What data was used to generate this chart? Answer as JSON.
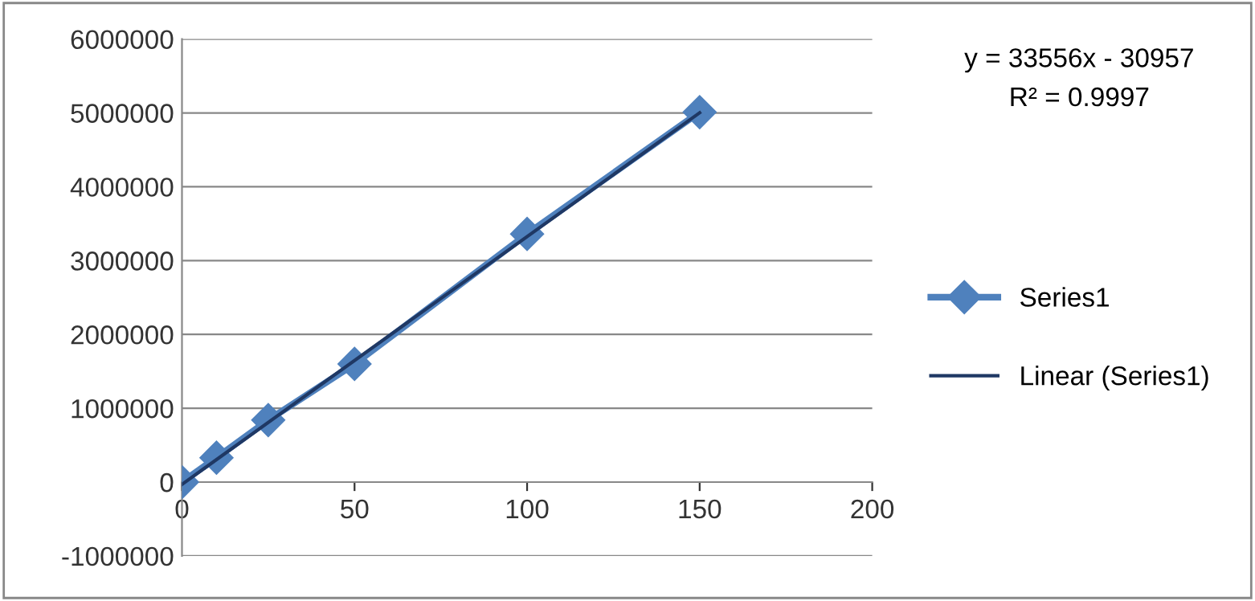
{
  "chart_data": {
    "type": "line",
    "x": [
      0,
      10,
      25,
      50,
      100,
      150
    ],
    "series": [
      {
        "name": "Series1",
        "color": "#4f81bd",
        "values": [
          0,
          330000,
          840000,
          1600000,
          3360000,
          5010000
        ],
        "marker": "diamond"
      },
      {
        "name": "Linear (Series1)",
        "type": "line",
        "color": "#1f3864",
        "x": [
          0,
          150
        ],
        "values": [
          -30957,
          5002443
        ],
        "marker": "none"
      }
    ],
    "annotations": [
      "y = 33556x - 30957",
      "R² = 0.9997"
    ],
    "xlim": [
      0,
      200
    ],
    "xticks": [
      0,
      50,
      100,
      150,
      200
    ],
    "ylim": [
      -1000000,
      6000000
    ],
    "yticks": [
      -1000000,
      0,
      1000000,
      2000000,
      3000000,
      4000000,
      5000000,
      6000000
    ],
    "grid": "y",
    "legend": "right",
    "line_style": "solid"
  }
}
